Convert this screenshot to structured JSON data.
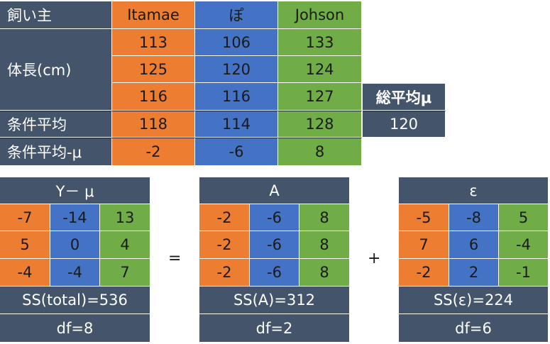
{
  "top_table": {
    "headers": [
      "飼い主",
      "Itamae",
      "ぽ",
      "Johson"
    ],
    "row_label_length": "体長(cm)",
    "rows": [
      [
        "113",
        "106",
        "133"
      ],
      [
        "125",
        "120",
        "124"
      ],
      [
        "116",
        "116",
        "127"
      ]
    ],
    "cond_mean_label": "条件平均",
    "cond_mean": [
      "118",
      "114",
      "128"
    ],
    "dev_label": "条件平均-μ",
    "dev": [
      "-2",
      "-6",
      "8"
    ],
    "grand_mean_label": "総平均μ",
    "grand_mean": "120"
  },
  "decomposition": [
    {
      "title": "Y－ μ",
      "rows": [
        [
          "-7",
          "-14",
          "13"
        ],
        [
          "5",
          "0",
          "4"
        ],
        [
          "-4",
          "-4",
          "7"
        ]
      ],
      "ss": "SS(total)=536",
      "df": "df=8"
    },
    {
      "title": "A",
      "rows": [
        [
          "-2",
          "-6",
          "8"
        ],
        [
          "-2",
          "-6",
          "8"
        ],
        [
          "-2",
          "-6",
          "8"
        ]
      ],
      "ss": "SS(A)=312",
      "df": "df=2"
    },
    {
      "title": "ε",
      "rows": [
        [
          "-5",
          "-8",
          "5"
        ],
        [
          "7",
          "6",
          "-4"
        ],
        [
          "-2",
          "2",
          "-1"
        ]
      ],
      "ss": "SS(ε)=224",
      "df": "df=6"
    }
  ],
  "operators": {
    "equals": "=",
    "plus": "+"
  },
  "colors": {
    "dark": "#44546a",
    "orange": "#ed7d31",
    "blue": "#4472c4",
    "green": "#70ad47"
  }
}
